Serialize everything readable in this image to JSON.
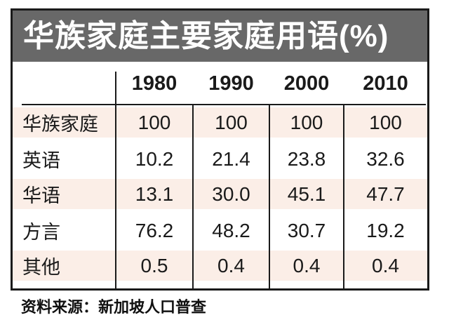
{
  "title": "华族家庭主要家庭用语(%)",
  "source_note": "资料来源：新加坡人口普查",
  "colors": {
    "title_bar_bg": "#686868",
    "title_text": "#ffffff",
    "row_band": "#fbeee7",
    "line": "#1a1a1a",
    "background": "#ffffff"
  },
  "table": {
    "column_headers": [
      "1980",
      "1990",
      "2000",
      "2010"
    ],
    "rows": [
      {
        "label": "华族家庭",
        "values": [
          "100",
          "100",
          "100",
          "100"
        ]
      },
      {
        "label": "英语",
        "values": [
          "10.2",
          "21.4",
          "23.8",
          "32.6"
        ]
      },
      {
        "label": "华语",
        "values": [
          "13.1",
          "30.0",
          "45.1",
          "47.7"
        ]
      },
      {
        "label": "方言",
        "values": [
          "76.2",
          "48.2",
          "30.7",
          "19.2"
        ]
      },
      {
        "label": "其他",
        "values": [
          "0.5",
          "0.4",
          "0.4",
          "0.4"
        ]
      }
    ]
  },
  "chart_data": {
    "type": "table",
    "title": "华族家庭主要家庭用语(%)",
    "categories": [
      "1980",
      "1990",
      "2000",
      "2010"
    ],
    "series": [
      {
        "name": "华族家庭",
        "values": [
          100,
          100,
          100,
          100
        ]
      },
      {
        "name": "英语",
        "values": [
          10.2,
          21.4,
          23.8,
          32.6
        ]
      },
      {
        "name": "华语",
        "values": [
          13.1,
          30.0,
          45.1,
          47.7
        ]
      },
      {
        "name": "方言",
        "values": [
          76.2,
          48.2,
          30.7,
          19.2
        ]
      },
      {
        "name": "其他",
        "values": [
          0.5,
          0.4,
          0.4,
          0.4
        ]
      }
    ],
    "unit": "percent",
    "source": "资料来源：新加坡人口普查",
    "layout": "years as columns, language categories as rows, alternating peach row bands"
  }
}
